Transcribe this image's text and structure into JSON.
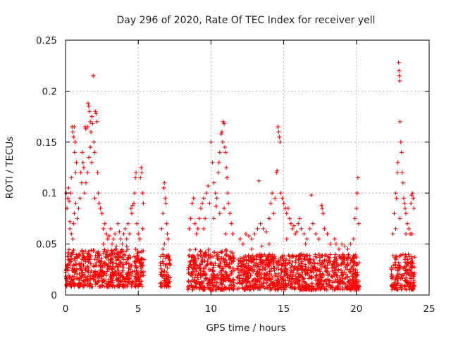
{
  "chart_data": {
    "type": "scatter",
    "title": "Day 296 of 2020, Rate Of TEC Index for receiver yell",
    "xlabel": "GPS time / hours",
    "ylabel": "ROTI / TECUs",
    "xlim": [
      0,
      25
    ],
    "ylim": [
      0,
      0.25
    ],
    "xticks": [
      0,
      5,
      10,
      15,
      20,
      25
    ],
    "xtick_labels": [
      "0",
      "5",
      "10",
      "15",
      "20",
      "25"
    ],
    "yticks": [
      0,
      0.05,
      0.1,
      0.15,
      0.2,
      0.25
    ],
    "ytick_labels": [
      "0",
      "0.05",
      "0.1",
      "0.15",
      "0.2",
      "0.25"
    ],
    "grid": true,
    "marker": "+",
    "color": "#ff0000",
    "dense_coverage": [
      {
        "x_range": [
          0.0,
          5.4
        ],
        "y_range": [
          0.008,
          0.045
        ]
      },
      {
        "x_range": [
          6.5,
          7.2
        ],
        "y_range": [
          0.008,
          0.04
        ]
      },
      {
        "x_range": [
          8.4,
          11.6
        ],
        "y_range": [
          0.005,
          0.045
        ]
      },
      {
        "x_range": [
          11.8,
          20.2
        ],
        "y_range": [
          0.005,
          0.04
        ]
      },
      {
        "x_range": [
          22.4,
          24.0
        ],
        "y_range": [
          0.005,
          0.04
        ]
      }
    ],
    "series": [
      {
        "name": "ROTI",
        "points": [
          [
            0.05,
            0.1
          ],
          [
            0.1,
            0.085
          ],
          [
            0.15,
            0.095
          ],
          [
            0.2,
            0.105
          ],
          [
            0.25,
            0.092
          ],
          [
            0.3,
            0.072
          ],
          [
            0.35,
            0.1
          ],
          [
            0.4,
            0.115
          ],
          [
            0.45,
            0.165
          ],
          [
            0.5,
            0.16
          ],
          [
            0.55,
            0.155
          ],
          [
            0.6,
            0.165
          ],
          [
            0.62,
            0.14
          ],
          [
            0.65,
            0.15
          ],
          [
            0.7,
            0.12
          ],
          [
            0.75,
            0.13
          ],
          [
            0.3,
            0.065
          ],
          [
            0.4,
            0.06
          ],
          [
            0.5,
            0.055
          ],
          [
            0.55,
            0.07
          ],
          [
            0.6,
            0.08
          ],
          [
            0.7,
            0.09
          ],
          [
            0.8,
            0.075
          ],
          [
            0.9,
            0.085
          ],
          [
            1.0,
            0.095
          ],
          [
            1.05,
            0.12
          ],
          [
            1.1,
            0.11
          ],
          [
            1.15,
            0.14
          ],
          [
            1.2,
            0.13
          ],
          [
            1.25,
            0.125
          ],
          [
            1.3,
            0.1
          ],
          [
            1.35,
            0.165
          ],
          [
            1.4,
            0.163
          ],
          [
            1.5,
            0.165
          ],
          [
            1.55,
            0.188
          ],
          [
            1.6,
            0.185
          ],
          [
            1.65,
            0.18
          ],
          [
            1.7,
            0.17
          ],
          [
            1.75,
            0.16
          ],
          [
            1.8,
            0.175
          ],
          [
            1.85,
            0.168
          ],
          [
            1.9,
            0.215
          ],
          [
            1.95,
            0.15
          ],
          [
            2.0,
            0.14
          ],
          [
            2.05,
            0.18
          ],
          [
            2.1,
            0.178
          ],
          [
            2.15,
            0.17
          ],
          [
            2.2,
            0.12
          ],
          [
            2.25,
            0.1
          ],
          [
            2.3,
            0.09
          ],
          [
            1.4,
            0.11
          ],
          [
            1.5,
            0.12
          ],
          [
            1.6,
            0.135
          ],
          [
            1.7,
            0.145
          ],
          [
            1.8,
            0.13
          ],
          [
            2.0,
            0.095
          ],
          [
            2.4,
            0.085
          ],
          [
            2.5,
            0.08
          ],
          [
            2.6,
            0.065
          ],
          [
            2.7,
            0.07
          ],
          [
            2.8,
            0.06
          ],
          [
            2.9,
            0.055
          ],
          [
            3.0,
            0.058
          ],
          [
            3.1,
            0.065
          ],
          [
            3.2,
            0.05
          ],
          [
            3.3,
            0.055
          ],
          [
            3.4,
            0.06
          ],
          [
            3.5,
            0.048
          ],
          [
            3.6,
            0.07
          ],
          [
            3.7,
            0.062
          ],
          [
            3.8,
            0.055
          ],
          [
            3.9,
            0.05
          ],
          [
            4.0,
            0.06
          ],
          [
            4.1,
            0.065
          ],
          [
            4.2,
            0.055
          ],
          [
            4.3,
            0.07
          ],
          [
            4.4,
            0.06
          ],
          [
            4.5,
            0.085
          ],
          [
            4.55,
            0.08
          ],
          [
            4.6,
            0.088
          ],
          [
            4.7,
            0.09
          ],
          [
            4.75,
            0.1
          ],
          [
            4.8,
            0.115
          ],
          [
            4.85,
            0.12
          ],
          [
            4.9,
            0.07
          ],
          [
            5.0,
            0.06
          ],
          [
            5.1,
            0.055
          ],
          [
            5.15,
            0.115
          ],
          [
            5.2,
            0.125
          ],
          [
            5.25,
            0.12
          ],
          [
            5.3,
            0.1
          ],
          [
            5.35,
            0.09
          ],
          [
            5.3,
            0.065
          ],
          [
            2.6,
            0.05
          ],
          [
            3.5,
            0.045
          ],
          [
            4.2,
            0.048
          ],
          [
            6.6,
            0.065
          ],
          [
            6.7,
            0.08
          ],
          [
            6.75,
            0.105
          ],
          [
            6.8,
            0.11
          ],
          [
            6.85,
            0.095
          ],
          [
            6.9,
            0.09
          ],
          [
            6.95,
            0.07
          ],
          [
            7.0,
            0.06
          ],
          [
            7.05,
            0.055
          ],
          [
            6.7,
            0.045
          ],
          [
            6.8,
            0.05
          ],
          [
            8.5,
            0.065
          ],
          [
            8.6,
            0.075
          ],
          [
            8.7,
            0.09
          ],
          [
            8.8,
            0.095
          ],
          [
            8.9,
            0.07
          ],
          [
            9.0,
            0.06
          ],
          [
            9.1,
            0.065
          ],
          [
            9.2,
            0.075
          ],
          [
            9.3,
            0.085
          ],
          [
            9.4,
            0.09
          ],
          [
            9.5,
            0.095
          ],
          [
            9.6,
            0.075
          ],
          [
            9.7,
            0.1
          ],
          [
            9.8,
            0.107
          ],
          [
            9.9,
            0.09
          ],
          [
            10.0,
            0.15
          ],
          [
            10.1,
            0.13
          ],
          [
            10.2,
            0.11
          ],
          [
            10.3,
            0.1
          ],
          [
            10.35,
            0.087
          ],
          [
            10.4,
            0.095
          ],
          [
            10.5,
            0.12
          ],
          [
            10.55,
            0.13
          ],
          [
            10.6,
            0.14
          ],
          [
            10.7,
            0.158
          ],
          [
            10.75,
            0.16
          ],
          [
            10.8,
            0.15
          ],
          [
            10.85,
            0.17
          ],
          [
            10.9,
            0.168
          ],
          [
            10.95,
            0.145
          ],
          [
            11.0,
            0.14
          ],
          [
            11.05,
            0.125
          ],
          [
            11.1,
            0.115
          ],
          [
            11.15,
            0.1
          ],
          [
            11.2,
            0.09
          ],
          [
            11.3,
            0.08
          ],
          [
            11.4,
            0.07
          ],
          [
            11.5,
            0.06
          ],
          [
            10.2,
            0.075
          ],
          [
            9.5,
            0.065
          ],
          [
            10.6,
            0.08
          ],
          [
            10.9,
            0.085
          ],
          [
            11.0,
            0.06
          ],
          [
            12.0,
            0.055
          ],
          [
            12.2,
            0.05
          ],
          [
            12.4,
            0.06
          ],
          [
            12.6,
            0.058
          ],
          [
            12.8,
            0.055
          ],
          [
            13.0,
            0.06
          ],
          [
            13.2,
            0.065
          ],
          [
            13.3,
            0.112
          ],
          [
            13.4,
            0.07
          ],
          [
            13.6,
            0.065
          ],
          [
            13.8,
            0.062
          ],
          [
            14.0,
            0.075
          ],
          [
            14.1,
            0.09
          ],
          [
            14.2,
            0.1
          ],
          [
            14.3,
            0.08
          ],
          [
            14.4,
            0.095
          ],
          [
            14.5,
            0.12
          ],
          [
            14.55,
            0.122
          ],
          [
            14.6,
            0.165
          ],
          [
            14.65,
            0.16
          ],
          [
            14.7,
            0.155
          ],
          [
            14.75,
            0.15
          ],
          [
            14.8,
            0.1
          ],
          [
            14.9,
            0.095
          ],
          [
            15.0,
            0.09
          ],
          [
            15.1,
            0.085
          ],
          [
            15.2,
            0.08
          ],
          [
            15.3,
            0.085
          ],
          [
            15.4,
            0.075
          ],
          [
            15.5,
            0.07
          ],
          [
            15.6,
            0.065
          ],
          [
            15.7,
            0.068
          ],
          [
            15.8,
            0.06
          ],
          [
            15.9,
            0.062
          ],
          [
            16.0,
            0.07
          ],
          [
            16.1,
            0.075
          ],
          [
            16.2,
            0.065
          ],
          [
            16.4,
            0.06
          ],
          [
            16.6,
            0.055
          ],
          [
            16.8,
            0.065
          ],
          [
            16.9,
            0.098
          ],
          [
            17.0,
            0.07
          ],
          [
            17.2,
            0.06
          ],
          [
            17.4,
            0.055
          ],
          [
            17.6,
            0.088
          ],
          [
            17.65,
            0.085
          ],
          [
            17.7,
            0.08
          ],
          [
            17.8,
            0.065
          ],
          [
            18.0,
            0.06
          ],
          [
            18.2,
            0.05
          ],
          [
            18.5,
            0.055
          ],
          [
            18.6,
            0.05
          ],
          [
            18.8,
            0.045
          ],
          [
            19.0,
            0.05
          ],
          [
            19.2,
            0.048
          ],
          [
            19.4,
            0.045
          ],
          [
            19.6,
            0.05
          ],
          [
            19.8,
            0.055
          ],
          [
            19.9,
            0.075
          ],
          [
            20.0,
            0.085
          ],
          [
            20.05,
            0.1
          ],
          [
            20.1,
            0.115
          ],
          [
            20.15,
            0.07
          ],
          [
            14.0,
            0.05
          ],
          [
            13.5,
            0.048
          ],
          [
            15.2,
            0.055
          ],
          [
            16.5,
            0.05
          ],
          [
            12.8,
            0.045
          ],
          [
            22.5,
            0.06
          ],
          [
            22.6,
            0.08
          ],
          [
            22.7,
            0.1
          ],
          [
            22.75,
            0.095
          ],
          [
            22.8,
            0.12
          ],
          [
            22.85,
            0.13
          ],
          [
            22.9,
            0.228
          ],
          [
            22.92,
            0.22
          ],
          [
            22.95,
            0.215
          ],
          [
            22.98,
            0.21
          ],
          [
            23.0,
            0.17
          ],
          [
            23.05,
            0.15
          ],
          [
            23.1,
            0.14
          ],
          [
            23.15,
            0.12
          ],
          [
            23.2,
            0.11
          ],
          [
            23.25,
            0.095
          ],
          [
            23.3,
            0.09
          ],
          [
            23.35,
            0.085
          ],
          [
            23.4,
            0.08
          ],
          [
            23.5,
            0.07
          ],
          [
            23.6,
            0.065
          ],
          [
            23.7,
            0.06
          ],
          [
            23.75,
            0.09
          ],
          [
            23.8,
            0.098
          ],
          [
            23.85,
            0.1
          ],
          [
            23.9,
            0.095
          ],
          [
            23.95,
            0.085
          ],
          [
            22.7,
            0.065
          ],
          [
            23.0,
            0.075
          ],
          [
            23.4,
            0.06
          ],
          [
            23.8,
            0.06
          ]
        ]
      }
    ]
  }
}
